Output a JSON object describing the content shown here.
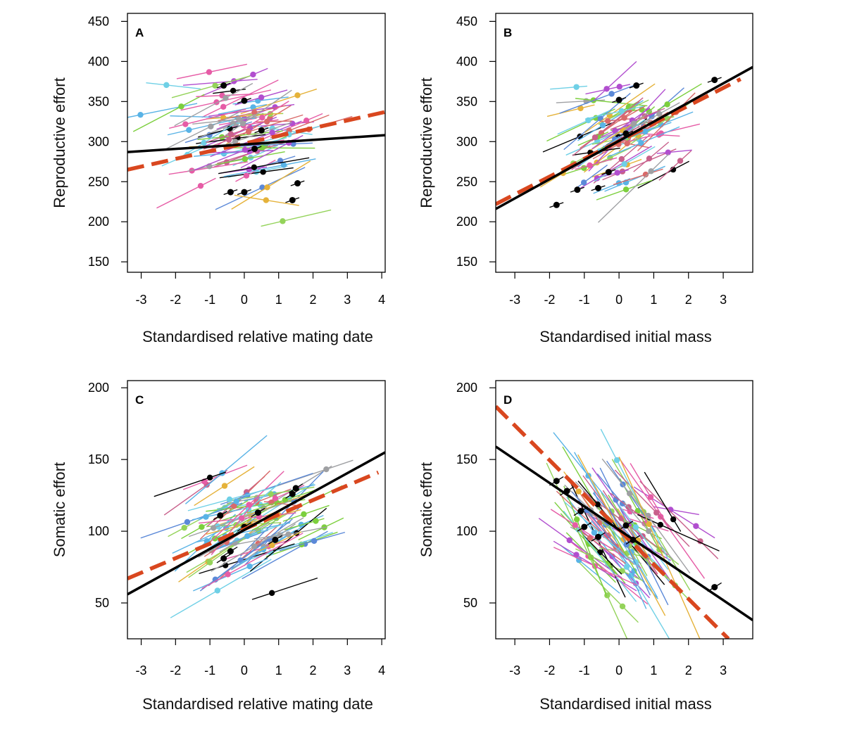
{
  "chart_data": [
    {
      "panel": "A",
      "type": "scatter",
      "xlabel": "Standardised relative mating date",
      "ylabel": "Reproductive effort",
      "xlim": [
        -3.4,
        4.1
      ],
      "ylim": [
        137,
        460
      ],
      "xticks": [
        "-3",
        "-2",
        "-1",
        "0",
        "1",
        "2",
        "3",
        "4"
      ],
      "yticks": [
        "150",
        "200",
        "250",
        "300",
        "350",
        "400",
        "450"
      ],
      "population_fit": {
        "x": [
          -3.4,
          4.1
        ],
        "y": [
          287,
          308
        ]
      },
      "mean_trend": {
        "x": [
          -3.4,
          4.1
        ],
        "y": [
          265,
          337
        ]
      },
      "individual_fits": {
        "count": 80,
        "slope_mean": 11,
        "slope_sd": 8,
        "half_span_mean": 0.9,
        "x_center_mean": 0.0,
        "x_center_sd": 0.85,
        "y_center_mean": 305,
        "y_center_sd": 40,
        "y_min": 165,
        "y_max": 410
      },
      "highlighted_points": [
        {
          "x": -0.6,
          "y": 370
        },
        {
          "x": 0.0,
          "y": 351
        },
        {
          "x": 0.5,
          "y": 314
        },
        {
          "x": 0.3,
          "y": 291
        },
        {
          "x": -0.4,
          "y": 237
        },
        {
          "x": 0.0,
          "y": 237
        },
        {
          "x": 1.4,
          "y": 227
        },
        {
          "x": 1.55,
          "y": 248
        }
      ]
    },
    {
      "panel": "B",
      "type": "scatter",
      "xlabel": "Standardised initial mass",
      "ylabel": "Reproductive effort",
      "xlim": [
        -3.55,
        3.85
      ],
      "ylim": [
        137,
        460
      ],
      "xticks": [
        "-3",
        "-2",
        "-1",
        "0",
        "1",
        "2",
        "3"
      ],
      "yticks": [
        "150",
        "200",
        "250",
        "300",
        "350",
        "400",
        "450"
      ],
      "population_fit": {
        "x": [
          -3.55,
          3.85
        ],
        "y": [
          216,
          393
        ]
      },
      "mean_trend": {
        "x": [
          -3.55,
          3.5
        ],
        "y": [
          222,
          378
        ]
      },
      "individual_fits": {
        "count": 80,
        "slope_mean": 22,
        "slope_sd": 10,
        "half_span_mean": 0.75,
        "x_center_mean": 0.0,
        "x_center_sd": 0.7,
        "y_center_mean": 300,
        "y_center_sd": 28,
        "y_min": 180,
        "y_max": 410
      },
      "highlighted_points": [
        {
          "x": -1.8,
          "y": 221
        },
        {
          "x": -1.2,
          "y": 240
        },
        {
          "x": -0.6,
          "y": 242
        },
        {
          "x": 0.0,
          "y": 352
        },
        {
          "x": 0.5,
          "y": 370
        },
        {
          "x": 0.2,
          "y": 310
        },
        {
          "x": 2.75,
          "y": 377
        },
        {
          "x": -0.3,
          "y": 262
        }
      ]
    },
    {
      "panel": "C",
      "type": "scatter",
      "xlabel": "Standardised relative mating date",
      "ylabel": "Somatic effort",
      "xlim": [
        -3.4,
        4.1
      ],
      "ylim": [
        25,
        205
      ],
      "xticks": [
        "-3",
        "-2",
        "-1",
        "0",
        "1",
        "2",
        "3",
        "4"
      ],
      "yticks": [
        "50",
        "100",
        "150",
        "200"
      ],
      "population_fit": {
        "x": [
          -3.4,
          4.1
        ],
        "y": [
          56,
          155
        ]
      },
      "mean_trend": {
        "x": [
          -3.4,
          3.9
        ],
        "y": [
          67,
          141
        ]
      },
      "individual_fits": {
        "count": 80,
        "slope_mean": 12,
        "slope_sd": 7,
        "half_span_mean": 1.0,
        "x_center_mean": 0.1,
        "x_center_sd": 0.85,
        "y_center_mean": 105,
        "y_center_sd": 18,
        "y_min": 30,
        "y_max": 150
      },
      "highlighted_points": [
        {
          "x": -0.6,
          "y": 81
        },
        {
          "x": -0.4,
          "y": 86
        },
        {
          "x": 0.0,
          "y": 103
        },
        {
          "x": 0.4,
          "y": 113
        },
        {
          "x": 1.4,
          "y": 126
        },
        {
          "x": 1.5,
          "y": 130
        },
        {
          "x": 0.9,
          "y": 94
        },
        {
          "x": -0.7,
          "y": 111
        }
      ]
    },
    {
      "panel": "D",
      "type": "scatter",
      "xlabel": "Standardised initial mass",
      "ylabel": "Somatic effort",
      "xlim": [
        -3.55,
        3.85
      ],
      "ylim": [
        25,
        205
      ],
      "xticks": [
        "-3",
        "-2",
        "-1",
        "0",
        "1",
        "2",
        "3"
      ],
      "yticks": [
        "50",
        "100",
        "150",
        "200"
      ],
      "population_fit": {
        "x": [
          -3.55,
          3.85
        ],
        "y": [
          159,
          38
        ]
      },
      "mean_trend": {
        "x": [
          -3.55,
          3.15
        ],
        "y": [
          187,
          25
        ]
      },
      "individual_fits": {
        "count": 80,
        "slope_mean": -28,
        "slope_sd": 12,
        "half_span_mean": 0.9,
        "x_center_mean": 0.0,
        "x_center_sd": 0.75,
        "y_center_mean": 100,
        "y_center_sd": 15,
        "y_min": 28,
        "y_max": 185
      },
      "highlighted_points": [
        {
          "x": -1.8,
          "y": 135
        },
        {
          "x": -1.5,
          "y": 128
        },
        {
          "x": -1.1,
          "y": 114
        },
        {
          "x": -1.0,
          "y": 103
        },
        {
          "x": -0.6,
          "y": 96
        },
        {
          "x": 0.2,
          "y": 104
        },
        {
          "x": 0.4,
          "y": 94
        },
        {
          "x": 2.75,
          "y": 61
        }
      ]
    }
  ],
  "palette": [
    "#e5b23a",
    "#59b3e6",
    "#94d35a",
    "#c8608b",
    "#b14ecf",
    "#5b89d8",
    "#9fa0a3",
    "#000000",
    "#6fd0e6",
    "#e65ca6",
    "#7ccf3d",
    "#d96a6a"
  ],
  "colors": {
    "population_fit": "#000000",
    "mean_trend": "#d9471f",
    "frame": "#000000"
  }
}
